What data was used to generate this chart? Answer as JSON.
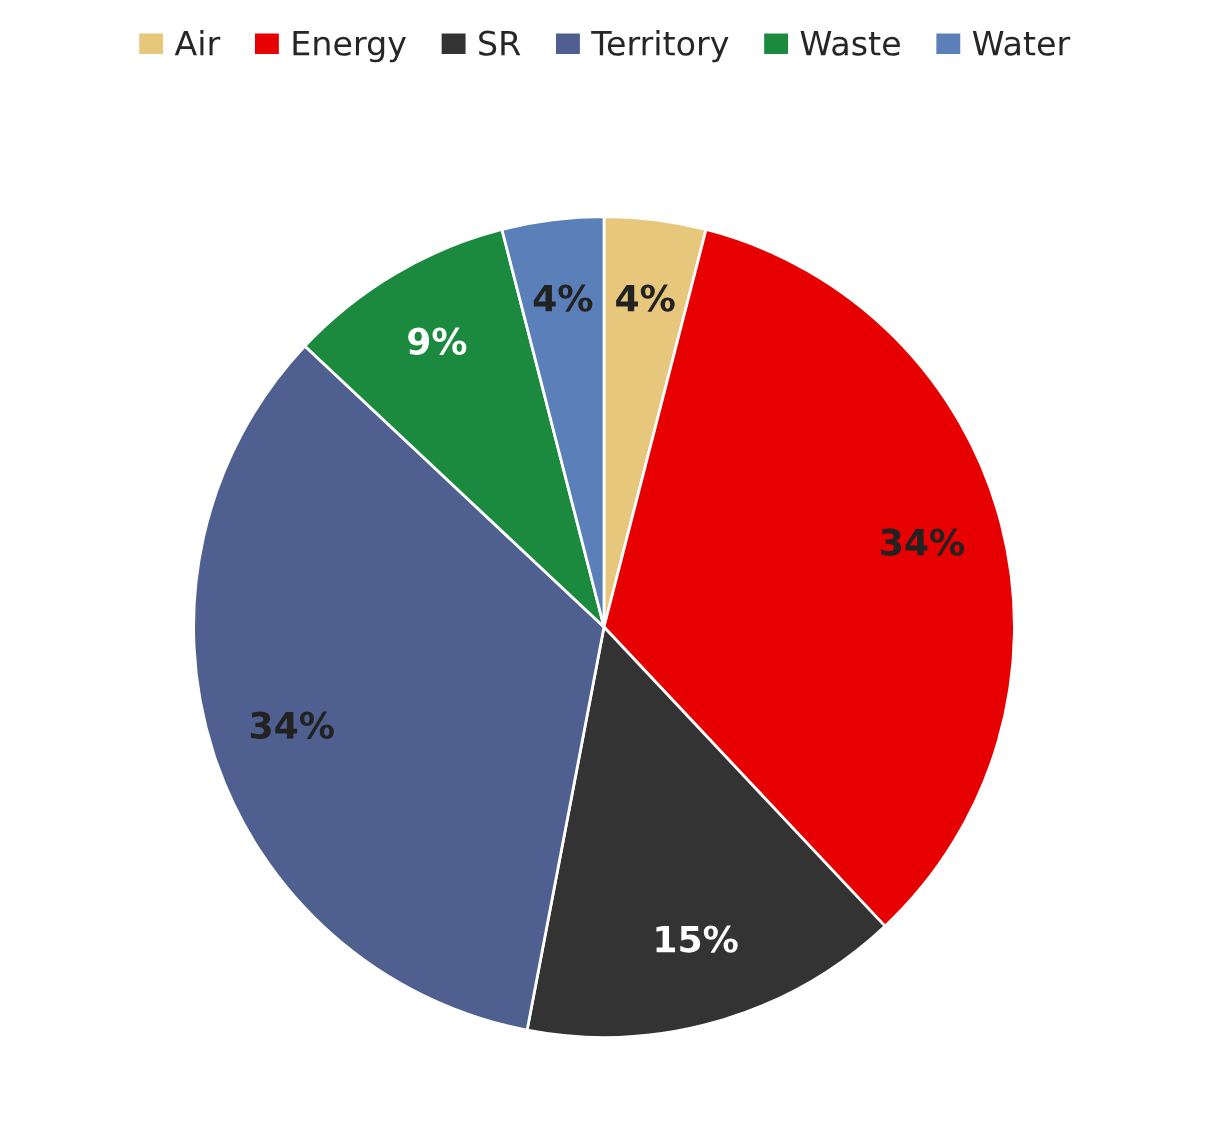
{
  "chart_data": {
    "type": "pie",
    "categories": [
      "Air",
      "Energy",
      "SR",
      "Territory",
      "Waste",
      "Water"
    ],
    "values": [
      4,
      34,
      15,
      34,
      9,
      4
    ],
    "colors": [
      "#e6c77c",
      "#e60000",
      "#333333",
      "#4f5f8f",
      "#1b8a3e",
      "#5b7fb8"
    ],
    "value_labels": [
      "4%",
      "34%",
      "15%",
      "34%",
      "9%",
      "4%"
    ],
    "legend": "top"
  }
}
